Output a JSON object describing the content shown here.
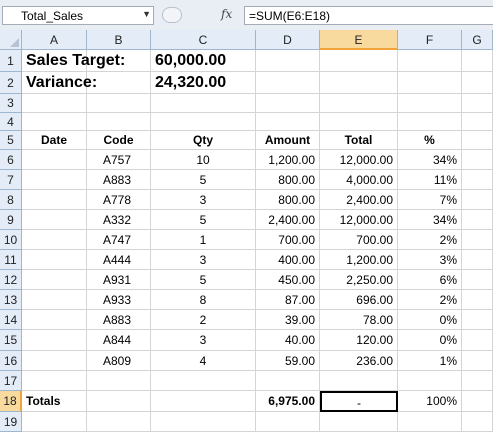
{
  "formula_bar": {
    "name_box": "Total_Sales",
    "fx_label": "fx",
    "formula": "=SUM(E6:E18)"
  },
  "columns": [
    "A",
    "B",
    "C",
    "D",
    "E",
    "F",
    "G"
  ],
  "rows": [
    "1",
    "2",
    "3",
    "4",
    "5",
    "6",
    "7",
    "8",
    "9",
    "10",
    "11",
    "12",
    "13",
    "14",
    "15",
    "16",
    "17",
    "18",
    "19"
  ],
  "summary": {
    "sales_target_label": "Sales Target:",
    "sales_target_value": "60,000.00",
    "variance_label": "Variance:",
    "variance_value": "24,320.00"
  },
  "table": {
    "headers": {
      "date": "Date",
      "code": "Code",
      "qty": "Qty",
      "amount": "Amount",
      "total": "Total",
      "pct": "%"
    },
    "rows": [
      {
        "code": "A757",
        "qty": "10",
        "amount": "1,200.00",
        "total": "12,000.00",
        "pct": "34%"
      },
      {
        "code": "A883",
        "qty": "5",
        "amount": "800.00",
        "total": "4,000.00",
        "pct": "11%"
      },
      {
        "code": "A778",
        "qty": "3",
        "amount": "800.00",
        "total": "2,400.00",
        "pct": "7%"
      },
      {
        "code": "A332",
        "qty": "5",
        "amount": "2,400.00",
        "total": "12,000.00",
        "pct": "34%"
      },
      {
        "code": "A747",
        "qty": "1",
        "amount": "700.00",
        "total": "700.00",
        "pct": "2%"
      },
      {
        "code": "A444",
        "qty": "3",
        "amount": "400.00",
        "total": "1,200.00",
        "pct": "3%"
      },
      {
        "code": "A931",
        "qty": "5",
        "amount": "450.00",
        "total": "2,250.00",
        "pct": "6%"
      },
      {
        "code": "A933",
        "qty": "8",
        "amount": "87.00",
        "total": "696.00",
        "pct": "2%"
      },
      {
        "code": "A883",
        "qty": "2",
        "amount": "39.00",
        "total": "78.00",
        "pct": "0%"
      },
      {
        "code": "A844",
        "qty": "3",
        "amount": "40.00",
        "total": "120.00",
        "pct": "0%"
      },
      {
        "code": "A809",
        "qty": "4",
        "amount": "59.00",
        "total": "236.00",
        "pct": "1%"
      }
    ],
    "totals": {
      "label": "Totals",
      "amount": "6,975.00",
      "total": "-",
      "pct": "100%"
    }
  },
  "active_cell": "E18"
}
